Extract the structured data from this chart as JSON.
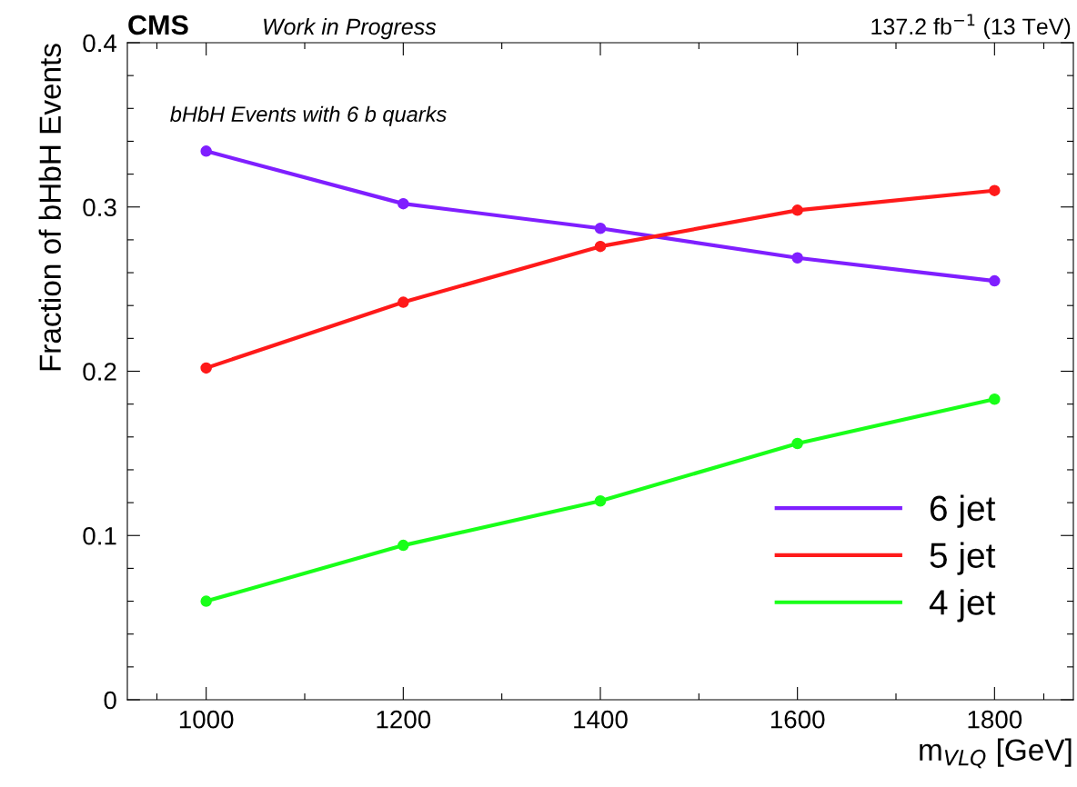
{
  "chart_data": {
    "type": "line",
    "title": "CMS",
    "subtitle": "Work in Progress",
    "annotations": [
      "137.2 fb$^{−1}$ (13 TeV)",
      "bHbH Events with 6 b quarks"
    ],
    "xlabel": "m$_{VLQ}$ [GeV]",
    "ylabel": "Fraction of bHbH Events",
    "x": [
      1000,
      1200,
      1400,
      1600,
      1800
    ],
    "series": [
      {
        "name": "6 jet",
        "color": "#7f1fff",
        "values": [
          0.334,
          0.302,
          0.287,
          0.269,
          0.255
        ]
      },
      {
        "name": "5 jet",
        "color": "#ff1a1a",
        "values": [
          0.202,
          0.242,
          0.276,
          0.298,
          0.31
        ]
      },
      {
        "name": "4 jet",
        "color": "#19ff19",
        "values": [
          0.06,
          0.094,
          0.121,
          0.156,
          0.183
        ]
      }
    ],
    "xlim": [
      920,
      1880
    ],
    "ylim": [
      0,
      0.4
    ],
    "xticks": [
      {
        "value": 950,
        "label": null
      },
      1000,
      {
        "value": 1100,
        "label": null
      },
      1200,
      {
        "value": 1300,
        "label": null
      },
      1400,
      {
        "value": 1500,
        "label": null
      },
      1600,
      {
        "value": 1700,
        "label": null
      },
      1800,
      {
        "value": 1850,
        "label": null
      }
    ],
    "yticks": [
      0,
      {
        "value": 0.02,
        "label": null
      },
      {
        "value": 0.04,
        "label": null
      },
      {
        "value": 0.06,
        "label": null
      },
      {
        "value": 0.08,
        "label": null
      },
      0.1,
      {
        "value": 0.12,
        "label": null
      },
      {
        "value": 0.14,
        "label": null
      },
      {
        "value": 0.16,
        "label": null
      },
      {
        "value": 0.18,
        "label": null
      },
      0.2,
      {
        "value": 0.22,
        "label": null
      },
      {
        "value": 0.24,
        "label": null
      },
      {
        "value": 0.26,
        "label": null
      },
      {
        "value": 0.28,
        "label": null
      },
      0.3,
      {
        "value": 0.32,
        "label": null
      },
      {
        "value": 0.34,
        "label": null
      },
      {
        "value": 0.36,
        "label": null
      },
      {
        "value": 0.38,
        "label": null
      },
      0.4
    ],
    "grid": false,
    "legend": "bottom right",
    "marker": "circle",
    "line_style": "solid"
  }
}
